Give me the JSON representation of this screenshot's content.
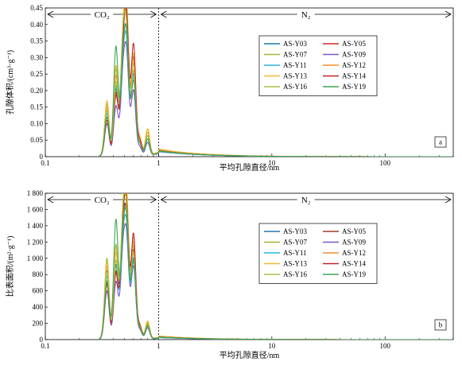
{
  "figure": {
    "charts": [
      {
        "type": "line",
        "panel_label": "a",
        "xscale": "log",
        "xlim": [
          0.1,
          400
        ],
        "xticks": [
          0.1,
          1,
          10,
          100
        ],
        "xticklabels": [
          "0.1",
          "1",
          "10",
          "100"
        ],
        "xlabel": "平均孔隙直径/nm",
        "ylabel": "孔隙体积/(cm³·g⁻¹)",
        "ylim": [
          0,
          0.45
        ],
        "yticks": [
          0,
          0.05,
          0.1,
          0.15,
          0.2,
          0.25,
          0.3,
          0.35,
          0.4,
          0.45
        ],
        "yticklabels": [
          "0",
          "0.05",
          "0.10",
          "0.15",
          "0.20",
          "0.25",
          "0.30",
          "0.35",
          "0.40",
          "0.45"
        ],
        "boundary_x": 1,
        "regions": [
          {
            "label": "CO₂",
            "from": 0.1,
            "to": 1
          },
          {
            "label": "N₂",
            "from": 1,
            "to": 400
          }
        ],
        "legend": {
          "placement": "upper-right",
          "columns": 2
        },
        "peaks": [
          0.35,
          0.42,
          0.48,
          0.52,
          0.6,
          0.68,
          0.8
        ],
        "series": [
          {
            "name": "AS-Y03",
            "color": "#1f77b4",
            "peak_heights": [
              0.14,
              0.2,
              0.22,
              0.34,
              0.25,
              0.04,
              0.05
            ],
            "n2_start": 0.017
          },
          {
            "name": "AS-Y05",
            "color": "#d62728",
            "peak_heights": [
              0.12,
              0.18,
              0.24,
              0.38,
              0.3,
              0.05,
              0.06
            ],
            "n2_start": 0.02
          },
          {
            "name": "AS-Y07",
            "color": "#9bbb30",
            "peak_heights": [
              0.16,
              0.26,
              0.2,
              0.4,
              0.28,
              0.05,
              0.07
            ],
            "n2_start": 0.021
          },
          {
            "name": "AS-Y09",
            "color": "#7e57c2",
            "peak_heights": [
              0.1,
              0.15,
              0.18,
              0.3,
              0.2,
              0.03,
              0.04
            ],
            "n2_start": 0.015
          },
          {
            "name": "AS-Y11",
            "color": "#2bb3e0",
            "peak_heights": [
              0.13,
              0.21,
              0.19,
              0.33,
              0.24,
              0.04,
              0.05
            ],
            "n2_start": 0.016
          },
          {
            "name": "AS-Y12",
            "color": "#f28e2b",
            "peak_heights": [
              0.15,
              0.24,
              0.23,
              0.42,
              0.29,
              0.05,
              0.08
            ],
            "n2_start": 0.022
          },
          {
            "name": "AS-Y13",
            "color": "#f1b82d",
            "peak_heights": [
              0.17,
              0.27,
              0.25,
              0.44,
              0.31,
              0.06,
              0.08
            ],
            "n2_start": 0.023
          },
          {
            "name": "AS-Y14",
            "color": "#c0272d",
            "peak_heights": [
              0.11,
              0.19,
              0.21,
              0.41,
              0.34,
              0.05,
              0.06
            ],
            "n2_start": 0.019
          },
          {
            "name": "AS-Y16",
            "color": "#a2c542",
            "peak_heights": [
              0.14,
              0.22,
              0.27,
              0.36,
              0.26,
              0.04,
              0.06
            ],
            "n2_start": 0.018
          },
          {
            "name": "AS-Y19",
            "color": "#3aa655",
            "peak_heights": [
              0.12,
              0.33,
              0.2,
              0.35,
              0.23,
              0.04,
              0.05
            ],
            "n2_start": 0.017
          }
        ]
      },
      {
        "type": "line",
        "panel_label": "b",
        "xscale": "log",
        "xlim": [
          0.1,
          400
        ],
        "xticks": [
          0.1,
          1,
          10,
          100
        ],
        "xticklabels": [
          "0.1",
          "1",
          "10",
          "100"
        ],
        "xlabel": "平均孔隙直径/nm",
        "ylabel": "比表面积/(m²·g⁻¹)",
        "ylim": [
          0,
          1800
        ],
        "yticks": [
          0,
          200,
          400,
          600,
          800,
          1000,
          1200,
          1400,
          1600,
          1800
        ],
        "yticklabels": [
          "0",
          "200",
          "400",
          "600",
          "800",
          "1 000",
          "1 200",
          "1 400",
          "1 600",
          "1 800"
        ],
        "boundary_x": 1,
        "regions": [
          {
            "label": "CO₂",
            "from": 0.1,
            "to": 1
          },
          {
            "label": "N₂",
            "from": 1,
            "to": 400
          }
        ],
        "legend": {
          "placement": "upper-right",
          "columns": 2
        },
        "peaks": [
          0.35,
          0.42,
          0.48,
          0.52,
          0.6,
          0.68,
          0.8
        ],
        "series": [
          {
            "name": "AS-Y03",
            "color": "#1f77b4",
            "peak_heights": [
              850,
              900,
              1050,
              1350,
              1000,
              150,
              170
            ],
            "n2_start": 30
          },
          {
            "name": "AS-Y05",
            "color": "#9e3a26",
            "peak_heights": [
              700,
              800,
              950,
              1400,
              1100,
              170,
              180
            ],
            "n2_start": 38
          },
          {
            "name": "AS-Y07",
            "color": "#9bbb30",
            "peak_heights": [
              1000,
              1150,
              900,
              1600,
              1150,
              180,
              200
            ],
            "n2_start": 40
          },
          {
            "name": "AS-Y09",
            "color": "#7e57c2",
            "peak_heights": [
              600,
              700,
              800,
              1200,
              900,
              120,
              140
            ],
            "n2_start": 25
          },
          {
            "name": "AS-Y11",
            "color": "#2bb3e0",
            "peak_heights": [
              780,
              880,
              850,
              1300,
              950,
              140,
              160
            ],
            "n2_start": 28
          },
          {
            "name": "AS-Y12",
            "color": "#f28e2b",
            "peak_heights": [
              900,
              1050,
              1000,
              1650,
              1200,
              180,
              210
            ],
            "n2_start": 42
          },
          {
            "name": "AS-Y13",
            "color": "#f1b82d",
            "peak_heights": [
              950,
              1100,
              1100,
              1720,
              1250,
              190,
              220
            ],
            "n2_start": 44
          },
          {
            "name": "AS-Y14",
            "color": "#c0272d",
            "peak_heights": [
              680,
              820,
              980,
              1550,
              1300,
              170,
              180
            ],
            "n2_start": 36
          },
          {
            "name": "AS-Y16",
            "color": "#a2c542",
            "peak_heights": [
              820,
              950,
              1150,
              1450,
              1050,
              150,
              180
            ],
            "n2_start": 33
          },
          {
            "name": "AS-Y19",
            "color": "#3aa655",
            "peak_heights": [
              720,
              1460,
              880,
              1380,
              980,
              140,
              160
            ],
            "n2_start": 30
          }
        ]
      }
    ]
  }
}
